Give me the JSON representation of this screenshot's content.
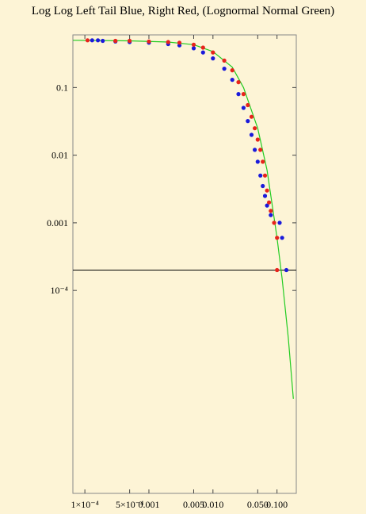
{
  "chart_data": {
    "type": "scatter",
    "title": "Log Log Left Tail Blue, Right Red, (Lognormal Normal Green)",
    "xlabel": "",
    "ylabel": "",
    "x_scale": "log",
    "y_scale": "log",
    "xlim": [
      6.5e-05,
      0.2
    ],
    "ylim": [
      1e-07,
      0.6
    ],
    "grid": false,
    "legend": "none",
    "x_ticks": [
      {
        "value": 0.0001,
        "label": "1×10⁻⁴"
      },
      {
        "value": 0.0005,
        "label": "5×10⁻⁴"
      },
      {
        "value": 0.001,
        "label": "0.001"
      },
      {
        "value": 0.005,
        "label": "0.005"
      },
      {
        "value": 0.01,
        "label": "0.010"
      },
      {
        "value": 0.05,
        "label": "0.050"
      },
      {
        "value": 0.1,
        "label": "0.100"
      }
    ],
    "y_ticks": [
      {
        "value": 0.1,
        "label": "0.1"
      },
      {
        "value": 0.01,
        "label": "0.01"
      },
      {
        "value": 0.001,
        "label": "0.001"
      },
      {
        "value": 0.0001,
        "label": "10⁻⁴"
      }
    ],
    "reference_line": {
      "y": 0.0002,
      "color": "#000000"
    },
    "series": [
      {
        "color": "#1a1adb",
        "points": [
          [
            0.00013,
            0.5
          ],
          [
            0.00016,
            0.5
          ],
          [
            0.00019,
            0.49
          ],
          [
            0.0003,
            0.48
          ],
          [
            0.0005,
            0.47
          ],
          [
            0.001,
            0.46
          ],
          [
            0.002,
            0.44
          ],
          [
            0.003,
            0.42
          ],
          [
            0.005,
            0.38
          ],
          [
            0.007,
            0.33
          ],
          [
            0.01,
            0.27
          ],
          [
            0.015,
            0.19
          ],
          [
            0.02,
            0.13
          ],
          [
            0.025,
            0.08
          ],
          [
            0.03,
            0.05
          ],
          [
            0.035,
            0.032
          ],
          [
            0.04,
            0.02
          ],
          [
            0.045,
            0.012
          ],
          [
            0.05,
            0.008
          ],
          [
            0.055,
            0.005
          ],
          [
            0.06,
            0.0035
          ],
          [
            0.065,
            0.0025
          ],
          [
            0.07,
            0.0018
          ],
          [
            0.08,
            0.0013
          ],
          [
            0.11,
            0.001
          ],
          [
            0.12,
            0.0006
          ],
          [
            0.14,
            0.0002
          ]
        ]
      },
      {
        "color": "#e8231b",
        "points": [
          [
            0.00011,
            0.5
          ],
          [
            0.0003,
            0.49
          ],
          [
            0.0005,
            0.49
          ],
          [
            0.001,
            0.48
          ],
          [
            0.002,
            0.47
          ],
          [
            0.003,
            0.46
          ],
          [
            0.005,
            0.43
          ],
          [
            0.007,
            0.39
          ],
          [
            0.01,
            0.33
          ],
          [
            0.015,
            0.25
          ],
          [
            0.02,
            0.18
          ],
          [
            0.025,
            0.12
          ],
          [
            0.03,
            0.08
          ],
          [
            0.035,
            0.055
          ],
          [
            0.04,
            0.037
          ],
          [
            0.045,
            0.025
          ],
          [
            0.05,
            0.017
          ],
          [
            0.055,
            0.012
          ],
          [
            0.06,
            0.008
          ],
          [
            0.065,
            0.005
          ],
          [
            0.07,
            0.003
          ],
          [
            0.075,
            0.002
          ],
          [
            0.08,
            0.0015
          ],
          [
            0.09,
            0.001
          ],
          [
            0.1,
            0.0006
          ],
          [
            0.1,
            0.0002
          ]
        ]
      },
      {
        "color": "#22cc22",
        "type": "line",
        "points": [
          [
            6.5e-05,
            0.5
          ],
          [
            0.0005,
            0.49
          ],
          [
            0.002,
            0.47
          ],
          [
            0.005,
            0.43
          ],
          [
            0.01,
            0.34
          ],
          [
            0.02,
            0.2
          ],
          [
            0.03,
            0.1
          ],
          [
            0.05,
            0.025
          ],
          [
            0.07,
            0.006
          ],
          [
            0.1,
            0.0006
          ],
          [
            0.12,
            0.00015
          ],
          [
            0.15,
            2e-05
          ],
          [
            0.18,
            2.5e-06
          ]
        ]
      }
    ]
  }
}
